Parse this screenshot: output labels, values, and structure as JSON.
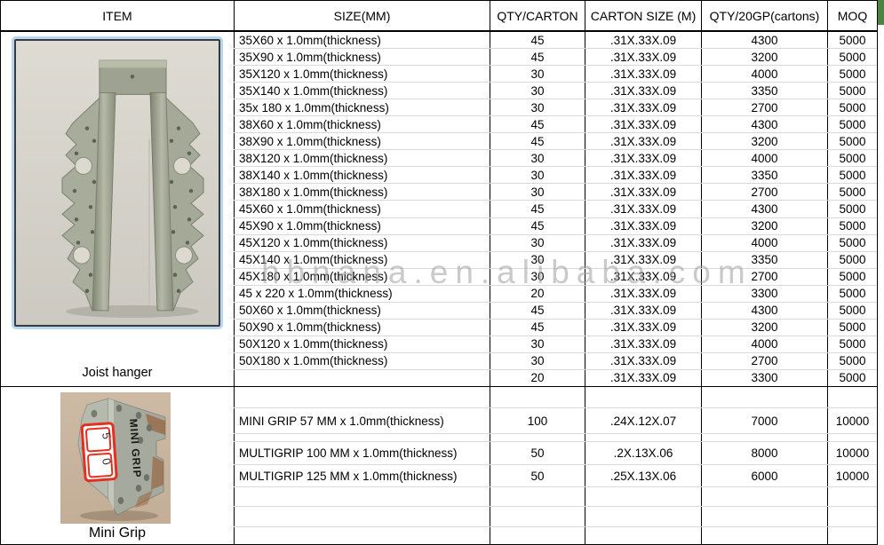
{
  "header": {
    "columns": [
      "ITEM",
      "SIZE(MM)",
      "QTY/CARTON",
      "CARTON SIZE (M)",
      "QTY/20GP(cartons)",
      "MOQ"
    ]
  },
  "watermark": "hbnana.en.alibaba.com",
  "colors": {
    "table_border": "#000000",
    "gridline": "#d9d9d9",
    "watermark_gray": "#9e9e9e",
    "corner_mark_green": "#4a8440",
    "photo_frame_blue": "#b8d6ee",
    "mini_photo_background": "#c9b59f",
    "sticker_red": "#e23022"
  },
  "sections": [
    {
      "item_label": "Joist hanger",
      "photo": "joist-hanger-photo",
      "rows": [
        {
          "size": "35X60 x 1.0mm(thickness)",
          "qty_carton": "45",
          "carton_size": ".31X.33X.09",
          "qty_20gp": "4300",
          "moq": "5000"
        },
        {
          "size": "35X90 x 1.0mm(thickness)",
          "qty_carton": "45",
          "carton_size": ".31X.33X.09",
          "qty_20gp": "3200",
          "moq": "5000"
        },
        {
          "size": "35X120 x 1.0mm(thickness)",
          "qty_carton": "30",
          "carton_size": ".31X.33X.09",
          "qty_20gp": "4000",
          "moq": "5000"
        },
        {
          "size": "35X140 x 1.0mm(thickness)",
          "qty_carton": "30",
          "carton_size": ".31X.33X.09",
          "qty_20gp": "3350",
          "moq": "5000"
        },
        {
          "size": "35x 180 x 1.0mm(thickness)",
          "qty_carton": "30",
          "carton_size": ".31X.33X.09",
          "qty_20gp": "2700",
          "moq": "5000"
        },
        {
          "size": "38X60 x 1.0mm(thickness)",
          "qty_carton": "45",
          "carton_size": ".31X.33X.09",
          "qty_20gp": "4300",
          "moq": "5000"
        },
        {
          "size": "38X90 x 1.0mm(thickness)",
          "qty_carton": "45",
          "carton_size": ".31X.33X.09",
          "qty_20gp": "3200",
          "moq": "5000"
        },
        {
          "size": "38X120 x 1.0mm(thickness)",
          "qty_carton": "30",
          "carton_size": ".31X.33X.09",
          "qty_20gp": "4000",
          "moq": "5000"
        },
        {
          "size": "38X140 x 1.0mm(thickness)",
          "qty_carton": "30",
          "carton_size": ".31X.33X.09",
          "qty_20gp": "3350",
          "moq": "5000"
        },
        {
          "size": "38X180 x 1.0mm(thickness)",
          "qty_carton": "30",
          "carton_size": ".31X.33X.09",
          "qty_20gp": "2700",
          "moq": "5000"
        },
        {
          "size": "45X60 x 1.0mm(thickness)",
          "qty_carton": "45",
          "carton_size": ".31X.33X.09",
          "qty_20gp": "4300",
          "moq": "5000"
        },
        {
          "size": "45X90 x 1.0mm(thickness)",
          "qty_carton": "45",
          "carton_size": ".31X.33X.09",
          "qty_20gp": "3200",
          "moq": "5000"
        },
        {
          "size": "45X120 x 1.0mm(thickness)",
          "qty_carton": "30",
          "carton_size": ".31X.33X.09",
          "qty_20gp": "4000",
          "moq": "5000"
        },
        {
          "size": "45X140 x 1.0mm(thickness)",
          "qty_carton": "30",
          "carton_size": ".31X.33X.09",
          "qty_20gp": "3350",
          "moq": "5000"
        },
        {
          "size": "45X180 x 1.0mm(thickness)",
          "qty_carton": "30",
          "carton_size": ".31X.33X.09",
          "qty_20gp": "2700",
          "moq": "5000"
        },
        {
          "size": "45 x 220 x 1.0mm(thickness)",
          "qty_carton": "20",
          "carton_size": ".31X.33X.09",
          "qty_20gp": "3300",
          "moq": "5000"
        },
        {
          "size": "50X60 x 1.0mm(thickness)",
          "qty_carton": "45",
          "carton_size": ".31X.33X.09",
          "qty_20gp": "4300",
          "moq": "5000"
        },
        {
          "size": "50X90 x 1.0mm(thickness)",
          "qty_carton": "45",
          "carton_size": ".31X.33X.09",
          "qty_20gp": "3200",
          "moq": "5000"
        },
        {
          "size": "50X120 x 1.0mm(thickness)",
          "qty_carton": "30",
          "carton_size": ".31X.33X.09",
          "qty_20gp": "4000",
          "moq": "5000"
        },
        {
          "size": "50X180 x 1.0mm(thickness)",
          "qty_carton": "30",
          "carton_size": ".31X.33X.09",
          "qty_20gp": "2700",
          "moq": "5000"
        },
        {
          "size": "",
          "qty_carton": "20",
          "carton_size": ".31X.33X.09",
          "qty_20gp": "3300",
          "moq": "5000"
        }
      ]
    },
    {
      "item_label": "Mini Grip",
      "photo": "mini-grip-photo",
      "photo_marker_text": "MINI GRIP",
      "photo_sticker_digits": [
        "5",
        "0"
      ],
      "rows": [
        {
          "h": 24,
          "size": "",
          "qty_carton": "",
          "carton_size": "",
          "qty_20gp": "",
          "moq": ""
        },
        {
          "h": 29,
          "size": "MINI GRIP 57 MM x 1.0mm(thickness)",
          "qty_carton": "100",
          "carton_size": ".24X.12X.07",
          "qty_20gp": "7000",
          "moq": "10000"
        },
        {
          "h": 9,
          "size": "",
          "qty_carton": "",
          "carton_size": "",
          "qty_20gp": "",
          "moq": ""
        },
        {
          "h": 26,
          "size": "MULTIGRIP 100 MM x 1.0mm(thickness)",
          "qty_carton": "50",
          "carton_size": ".2X.13X.06",
          "qty_20gp": "8000",
          "moq": "10000"
        },
        {
          "h": 25,
          "size": "MULTIGRIP 125 MM x 1.0mm(thickness)",
          "qty_carton": "50",
          "carton_size": ".25X.13X.06",
          "qty_20gp": "6000",
          "moq": "10000"
        },
        {
          "h": 22,
          "size": "",
          "qty_carton": "",
          "carton_size": "",
          "qty_20gp": "",
          "moq": ""
        },
        {
          "h": 23,
          "size": "",
          "qty_carton": "",
          "carton_size": "",
          "qty_20gp": "",
          "moq": ""
        },
        {
          "h": 19,
          "size": "",
          "qty_carton": "",
          "carton_size": "",
          "qty_20gp": "",
          "moq": ""
        }
      ]
    }
  ]
}
